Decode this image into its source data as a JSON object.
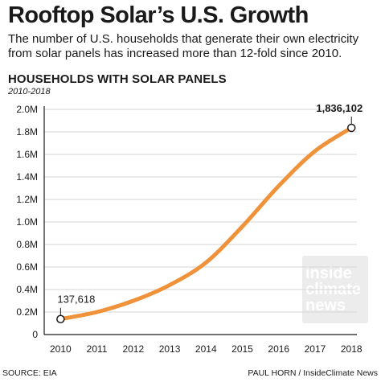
{
  "header": {
    "title": "Rooftop Solar’s U.S. Growth",
    "subtitle": "The number of U.S. households that generate their own electricity from solar panels has increased more than 12-fold since 2010."
  },
  "chart_heading": "HOUSEHOLDS WITH SOLAR PANELS",
  "chart_period": "2010-2018",
  "chart_data": {
    "type": "line",
    "title": "HOUSEHOLDS WITH SOLAR PANELS",
    "subtitle": "2010-2018",
    "x": [
      2010,
      2011,
      2012,
      2013,
      2014,
      2015,
      2016,
      2017,
      2018
    ],
    "series": [
      {
        "values": [
          137618,
          200000,
          300000,
          440000,
          640000,
          960000,
          1320000,
          1630000,
          1836102
        ]
      }
    ],
    "ylim": [
      0,
      2000000
    ],
    "yticks": [
      0,
      200000,
      400000,
      600000,
      800000,
      1000000,
      1200000,
      1400000,
      1600000,
      1800000,
      2000000
    ],
    "ytick_labels": [
      "0",
      "0.2M",
      "0.4M",
      "0.6M",
      "0.8M",
      "1.0M",
      "1.2M",
      "1.4M",
      "1.6M",
      "1.8M",
      "2.0M"
    ],
    "xtick_labels": [
      "2010",
      "2011",
      "2012",
      "2013",
      "2014",
      "2015",
      "2016",
      "2017",
      "2018"
    ],
    "annotations": [
      {
        "x": 2010,
        "label": "137,618"
      },
      {
        "x": 2018,
        "label": "1,836,102"
      }
    ],
    "grid": true,
    "line_color": "#f0923a"
  },
  "footer": {
    "source": "SOURCE: EIA",
    "credit": "PAUL HORN / InsideClimate News"
  },
  "logo": {
    "line1": "inside",
    "line2": "climate",
    "line3": "news"
  }
}
